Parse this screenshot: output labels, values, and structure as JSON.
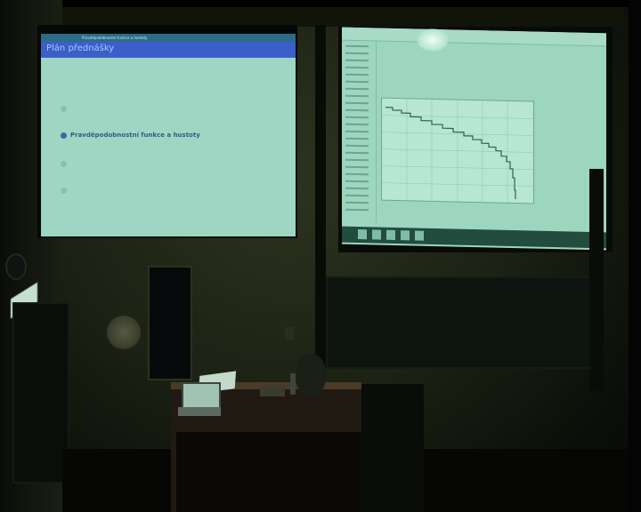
{
  "image_type": "photo of a lecture room with two projection screens",
  "left_screen": {
    "slide_header": "Pravděpodobnostní funkce a hustoty",
    "slide_title": "Plán přednášky",
    "active_item": "Pravděpodobnostní funkce a hustoty"
  },
  "right_screen": {
    "content": "web page with a step-shaped line graph",
    "chart_color": "#2f5f53"
  },
  "colors": {
    "projection_left": "#9fd6c3",
    "title_bar": "#3b5fc8",
    "projection_right": "#9dd6bf",
    "wall": "#1c2214"
  }
}
